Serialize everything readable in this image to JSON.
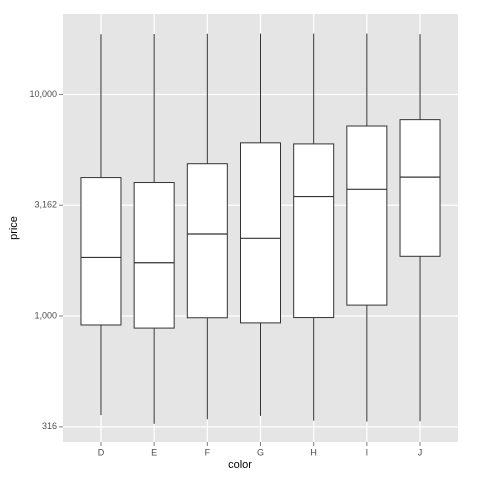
{
  "chart_data": {
    "type": "boxplot",
    "x_label": "color",
    "y_label": "price",
    "categories": [
      "D",
      "E",
      "F",
      "G",
      "H",
      "I",
      "J"
    ],
    "min": [
      357,
      326,
      342,
      354,
      337,
      334,
      335
    ],
    "q1": [
      911,
      882,
      982,
      931,
      984,
      1120,
      1860
    ],
    "median": [
      1838,
      1739,
      2344,
      2242,
      3460,
      3730,
      4234
    ],
    "q3": [
      4214,
      4003,
      4868,
      6048,
      5980,
      7202,
      7695
    ],
    "max": [
      18693,
      18731,
      18791,
      18818,
      18803,
      18823,
      18710
    ],
    "ylim": [
      270,
      23070
    ],
    "yticks": [
      316,
      {
        "value": 1000,
        "label": "1,000"
      },
      {
        "value": 3162,
        "label": "3,162"
      },
      {
        "value": 10000,
        "label": "10,000"
      }
    ],
    "log_y": true,
    "grid": true,
    "panel_color": "#e5e5e5",
    "box_color": "#ffffff",
    "line_color": "#333333"
  }
}
